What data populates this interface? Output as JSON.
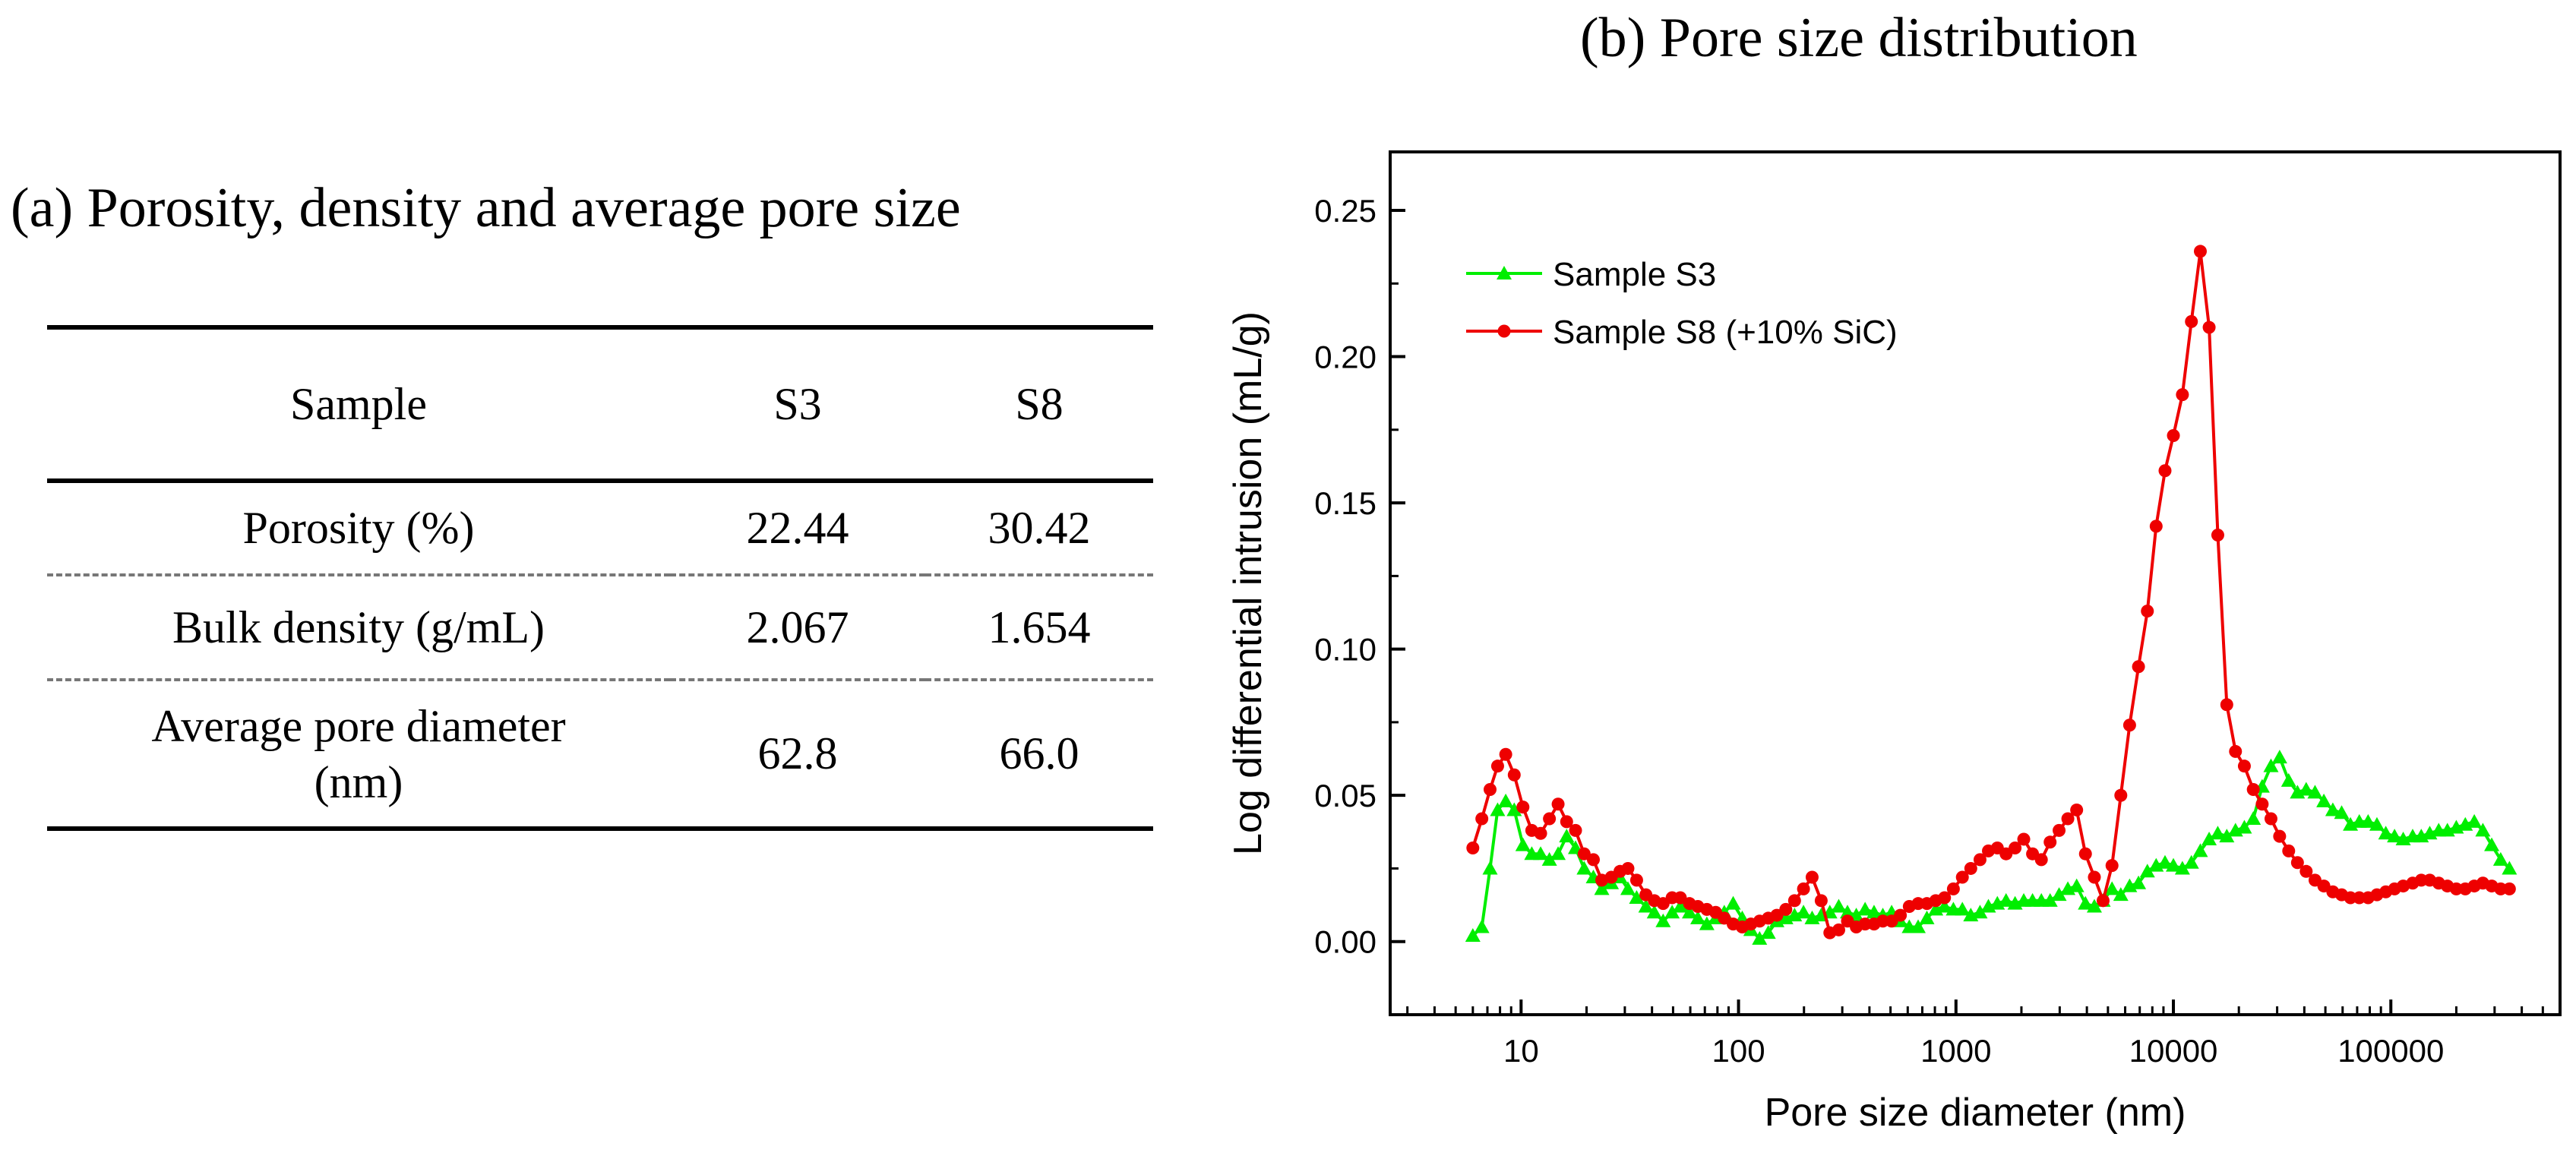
{
  "panel_a": {
    "title": "(a) Porosity, density and average pore size",
    "table": {
      "headers": [
        "Sample",
        "S3",
        "S8"
      ],
      "rows": [
        {
          "label": "Porosity (%)",
          "s3": "22.44",
          "s8": "30.42"
        },
        {
          "label": "Bulk density (g/mL)",
          "s3": "2.067",
          "s8": "1.654"
        },
        {
          "label_line1": "Average pore diameter",
          "label_line2": "(nm)",
          "s3": "62.8",
          "s8": "66.0"
        }
      ]
    }
  },
  "panel_b": {
    "title": "(b) Pore size distribution"
  },
  "chart_data": {
    "type": "line",
    "title": "(b) Pore size distribution",
    "xlabel": "Pore size diameter (nm)",
    "ylabel": "Log differential intrusion (mL/g)",
    "xscale": "log",
    "xlim": [
      2.5,
      600000
    ],
    "ylim": [
      -0.025,
      0.27
    ],
    "xticks": [
      10,
      100,
      1000,
      10000,
      100000
    ],
    "xtick_labels": [
      "10",
      "100",
      "1000",
      "10000",
      "100000"
    ],
    "yticks": [
      0,
      0.05,
      0.1,
      0.15,
      0.2,
      0.25
    ],
    "ytick_labels": [
      "0.00",
      "0.05",
      "0.10",
      "0.15",
      "0.20",
      "0.25"
    ],
    "legend_position": "top-left",
    "series": [
      {
        "name": "Sample S3",
        "color": "#00ee00",
        "marker": "triangle",
        "points": [
          [
            6,
            0.002
          ],
          [
            6.6,
            0.005
          ],
          [
            7.2,
            0.025
          ],
          [
            7.8,
            0.045
          ],
          [
            8.5,
            0.048
          ],
          [
            9.3,
            0.045
          ],
          [
            10.2,
            0.033
          ],
          [
            11.2,
            0.03
          ],
          [
            12.3,
            0.03
          ],
          [
            13.5,
            0.028
          ],
          [
            14.8,
            0.03
          ],
          [
            16.2,
            0.036
          ],
          [
            17.8,
            0.032
          ],
          [
            19.5,
            0.025
          ],
          [
            21.5,
            0.022
          ],
          [
            23.5,
            0.018
          ],
          [
            26,
            0.02
          ],
          [
            28.5,
            0.022
          ],
          [
            31,
            0.018
          ],
          [
            34,
            0.015
          ],
          [
            37.5,
            0.012
          ],
          [
            41,
            0.01
          ],
          [
            45,
            0.007
          ],
          [
            49.5,
            0.01
          ],
          [
            54,
            0.012
          ],
          [
            59.5,
            0.01
          ],
          [
            65,
            0.008
          ],
          [
            71.5,
            0.006
          ],
          [
            78.5,
            0.008
          ],
          [
            86,
            0.01
          ],
          [
            94.5,
            0.013
          ],
          [
            104,
            0.008
          ],
          [
            114,
            0.004
          ],
          [
            125,
            0.001
          ],
          [
            137,
            0.003
          ],
          [
            150,
            0.007
          ],
          [
            165,
            0.008
          ],
          [
            181,
            0.009
          ],
          [
            199,
            0.01
          ],
          [
            218,
            0.008
          ],
          [
            240,
            0.009
          ],
          [
            263,
            0.01
          ],
          [
            289,
            0.012
          ],
          [
            317,
            0.01
          ],
          [
            348,
            0.009
          ],
          [
            382,
            0.011
          ],
          [
            420,
            0.01
          ],
          [
            461,
            0.009
          ],
          [
            506,
            0.01
          ],
          [
            555,
            0.007
          ],
          [
            610,
            0.005
          ],
          [
            670,
            0.005
          ],
          [
            735,
            0.008
          ],
          [
            807,
            0.011
          ],
          [
            886,
            0.012
          ],
          [
            973,
            0.011
          ],
          [
            1070,
            0.011
          ],
          [
            1170,
            0.009
          ],
          [
            1290,
            0.01
          ],
          [
            1410,
            0.012
          ],
          [
            1550,
            0.013
          ],
          [
            1700,
            0.014
          ],
          [
            1870,
            0.013
          ],
          [
            2050,
            0.014
          ],
          [
            2250,
            0.014
          ],
          [
            2470,
            0.014
          ],
          [
            2710,
            0.014
          ],
          [
            2980,
            0.016
          ],
          [
            3270,
            0.018
          ],
          [
            3590,
            0.019
          ],
          [
            3940,
            0.013
          ],
          [
            4330,
            0.012
          ],
          [
            4750,
            0.014
          ],
          [
            5220,
            0.018
          ],
          [
            5730,
            0.016
          ],
          [
            6290,
            0.019
          ],
          [
            6910,
            0.02
          ],
          [
            7590,
            0.024
          ],
          [
            8330,
            0.026
          ],
          [
            9150,
            0.027
          ],
          [
            10000,
            0.026
          ],
          [
            11000,
            0.025
          ],
          [
            12100,
            0.027
          ],
          [
            13300,
            0.031
          ],
          [
            14600,
            0.035
          ],
          [
            16000,
            0.037
          ],
          [
            17600,
            0.036
          ],
          [
            19300,
            0.038
          ],
          [
            21200,
            0.039
          ],
          [
            23300,
            0.042
          ],
          [
            25600,
            0.053
          ],
          [
            28100,
            0.06
          ],
          [
            30800,
            0.063
          ],
          [
            33900,
            0.055
          ],
          [
            37200,
            0.051
          ],
          [
            40800,
            0.052
          ],
          [
            44800,
            0.051
          ],
          [
            49200,
            0.048
          ],
          [
            54100,
            0.045
          ],
          [
            59400,
            0.044
          ],
          [
            65200,
            0.04
          ],
          [
            71600,
            0.041
          ],
          [
            78600,
            0.041
          ],
          [
            86300,
            0.04
          ],
          [
            94800,
            0.037
          ],
          [
            104000,
            0.036
          ],
          [
            114000,
            0.035
          ],
          [
            126000,
            0.036
          ],
          [
            138000,
            0.036
          ],
          [
            151000,
            0.037
          ],
          [
            166000,
            0.038
          ],
          [
            182000,
            0.038
          ],
          [
            200000,
            0.039
          ],
          [
            220000,
            0.04
          ],
          [
            242000,
            0.041
          ],
          [
            265000,
            0.038
          ],
          [
            291000,
            0.033
          ],
          [
            320000,
            0.028
          ],
          [
            351000,
            0.025
          ]
        ]
      },
      {
        "name": "Sample S8 (+10% SiC)",
        "color": "#ee0000",
        "marker": "circle",
        "points": [
          [
            6,
            0.032
          ],
          [
            6.6,
            0.042
          ],
          [
            7.2,
            0.052
          ],
          [
            7.8,
            0.06
          ],
          [
            8.5,
            0.064
          ],
          [
            9.3,
            0.057
          ],
          [
            10.2,
            0.046
          ],
          [
            11.2,
            0.038
          ],
          [
            12.3,
            0.037
          ],
          [
            13.5,
            0.042
          ],
          [
            14.8,
            0.047
          ],
          [
            16.2,
            0.041
          ],
          [
            17.8,
            0.038
          ],
          [
            19.5,
            0.03
          ],
          [
            21.5,
            0.028
          ],
          [
            23.5,
            0.021
          ],
          [
            26,
            0.022
          ],
          [
            28.5,
            0.024
          ],
          [
            31,
            0.025
          ],
          [
            34,
            0.021
          ],
          [
            37.5,
            0.016
          ],
          [
            41,
            0.014
          ],
          [
            45,
            0.013
          ],
          [
            49.5,
            0.015
          ],
          [
            54,
            0.015
          ],
          [
            59.5,
            0.013
          ],
          [
            65,
            0.012
          ],
          [
            71.5,
            0.011
          ],
          [
            78.5,
            0.01
          ],
          [
            86,
            0.008
          ],
          [
            94.5,
            0.006
          ],
          [
            104,
            0.005
          ],
          [
            114,
            0.006
          ],
          [
            125,
            0.007
          ],
          [
            137,
            0.008
          ],
          [
            150,
            0.009
          ],
          [
            165,
            0.011
          ],
          [
            181,
            0.014
          ],
          [
            199,
            0.018
          ],
          [
            218,
            0.022
          ],
          [
            240,
            0.014
          ],
          [
            263,
            0.003
          ],
          [
            289,
            0.004
          ],
          [
            317,
            0.007
          ],
          [
            348,
            0.005
          ],
          [
            382,
            0.006
          ],
          [
            420,
            0.006
          ],
          [
            461,
            0.007
          ],
          [
            506,
            0.007
          ],
          [
            555,
            0.009
          ],
          [
            610,
            0.012
          ],
          [
            670,
            0.013
          ],
          [
            735,
            0.013
          ],
          [
            807,
            0.014
          ],
          [
            886,
            0.015
          ],
          [
            973,
            0.018
          ],
          [
            1070,
            0.022
          ],
          [
            1170,
            0.025
          ],
          [
            1290,
            0.028
          ],
          [
            1410,
            0.031
          ],
          [
            1550,
            0.032
          ],
          [
            1700,
            0.03
          ],
          [
            1870,
            0.032
          ],
          [
            2050,
            0.035
          ],
          [
            2250,
            0.03
          ],
          [
            2470,
            0.028
          ],
          [
            2710,
            0.034
          ],
          [
            2980,
            0.038
          ],
          [
            3270,
            0.042
          ],
          [
            3590,
            0.045
          ],
          [
            3940,
            0.03
          ],
          [
            4330,
            0.022
          ],
          [
            4750,
            0.014
          ],
          [
            5220,
            0.026
          ],
          [
            5730,
            0.05
          ],
          [
            6290,
            0.074
          ],
          [
            6910,
            0.094
          ],
          [
            7590,
            0.113
          ],
          [
            8330,
            0.142
          ],
          [
            9150,
            0.161
          ],
          [
            10000,
            0.173
          ],
          [
            11000,
            0.187
          ],
          [
            12100,
            0.212
          ],
          [
            13300,
            0.236
          ],
          [
            14600,
            0.21
          ],
          [
            16000,
            0.139
          ],
          [
            17600,
            0.081
          ],
          [
            19300,
            0.065
          ],
          [
            21200,
            0.06
          ],
          [
            23300,
            0.052
          ],
          [
            25600,
            0.047
          ],
          [
            28100,
            0.042
          ],
          [
            30800,
            0.036
          ],
          [
            33900,
            0.031
          ],
          [
            37200,
            0.027
          ],
          [
            40800,
            0.024
          ],
          [
            44800,
            0.021
          ],
          [
            49200,
            0.019
          ],
          [
            54100,
            0.017
          ],
          [
            59400,
            0.016
          ],
          [
            65200,
            0.015
          ],
          [
            71600,
            0.015
          ],
          [
            78600,
            0.015
          ],
          [
            86300,
            0.016
          ],
          [
            94800,
            0.017
          ],
          [
            104000,
            0.018
          ],
          [
            114000,
            0.019
          ],
          [
            126000,
            0.02
          ],
          [
            138000,
            0.021
          ],
          [
            151000,
            0.021
          ],
          [
            166000,
            0.02
          ],
          [
            182000,
            0.019
          ],
          [
            200000,
            0.018
          ],
          [
            220000,
            0.018
          ],
          [
            242000,
            0.019
          ],
          [
            265000,
            0.02
          ],
          [
            291000,
            0.019
          ],
          [
            320000,
            0.018
          ],
          [
            351000,
            0.018
          ]
        ]
      }
    ]
  }
}
